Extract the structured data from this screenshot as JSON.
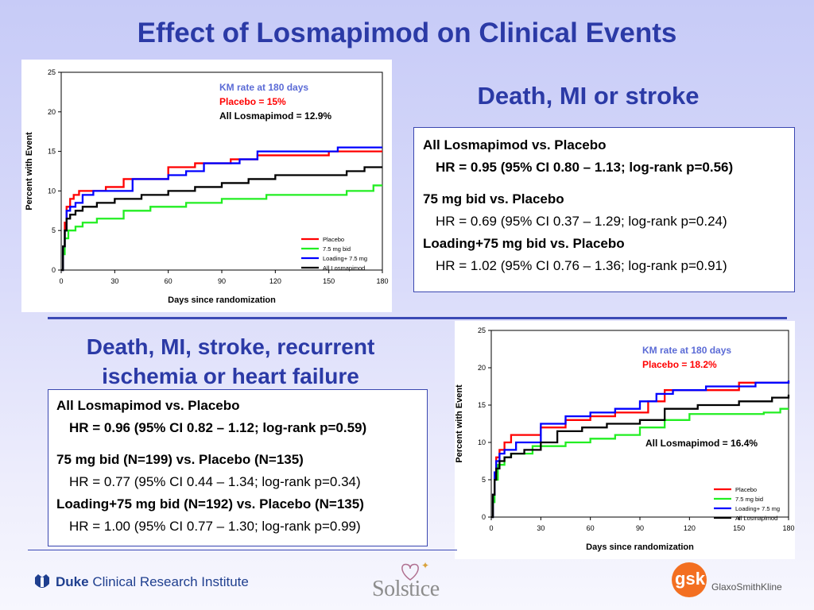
{
  "title": "Effect of Losmapimod on Clinical Events",
  "section1": {
    "heading": "Death, MI or stroke",
    "lines": [
      "All Losmapimod vs. Placebo",
      "HR = 0.95 (95% CI 0.80 – 1.13; log-rank p=0.56)",
      "75 mg bid vs. Placebo",
      "HR = 0.69 (95% CI 0.37 – 1.29; log-rank p=0.24)",
      "Loading+75 mg bid vs. Placebo",
      "HR = 1.02 (95% CI 0.76 – 1.36; log-rank p=0.91)"
    ]
  },
  "section2": {
    "heading_line1": "Death, MI, stroke, recurrent",
    "heading_line2": "ischemia or heart failure",
    "lines": [
      "All Losmapimod vs. Placebo",
      "HR = 0.96 (95% CI 0.82 – 1.12; log-rank p=0.59)",
      "75 mg bid (N=199) vs. Placebo (N=135)",
      "HR = 0.77 (95% CI 0.44 – 1.34; log-rank p=0.34)",
      "Loading+75 mg bid (N=192) vs. Placebo (N=135)",
      "HR = 1.00 (95% CI 0.77 – 1.30; log-rank p=0.99)"
    ]
  },
  "logos": {
    "duke_bold": "Duke",
    "duke_rest": "Clinical Research Institute",
    "solstice": "Solstice",
    "gsk": "gsk",
    "gsk_full": "GlaxoSmithKline"
  },
  "colors": {
    "title": "#2b3aa6",
    "placebo": "#ff0000",
    "bid75": "#22ee22",
    "loading": "#0000ff",
    "all": "#000000"
  },
  "chart_data": [
    {
      "type": "line",
      "step": true,
      "xlabel": "Days since randomization",
      "ylabel": "Percent with Event",
      "xlim": [
        0,
        180
      ],
      "ylim": [
        0,
        25
      ],
      "xticks": [
        0,
        30,
        60,
        90,
        120,
        150,
        180
      ],
      "yticks": [
        0,
        5,
        10,
        15,
        20,
        25
      ],
      "legend_position": "bottom-right",
      "annotations": [
        {
          "text": "KM rate at 180 days",
          "color": "#5b6bd6"
        },
        {
          "text": "Placebo = 15%",
          "color": "#ff0000"
        },
        {
          "text": "All Losmapimod = 12.9%",
          "color": "#000000"
        }
      ],
      "series": [
        {
          "name": "Placebo",
          "color": "#ff0000",
          "x": [
            0,
            1,
            2,
            3,
            5,
            7,
            10,
            15,
            25,
            35,
            55,
            60,
            75,
            95,
            110,
            150,
            180
          ],
          "y": [
            0,
            3,
            6,
            8,
            9,
            9.5,
            10,
            10,
            10.5,
            11.5,
            11.5,
            13,
            13.5,
            14,
            14.5,
            15,
            15
          ]
        },
        {
          "name": "7.5 mg bid",
          "color": "#22ee22",
          "x": [
            0,
            1,
            2,
            4,
            8,
            12,
            20,
            35,
            50,
            70,
            90,
            115,
            140,
            160,
            175,
            180
          ],
          "y": [
            0,
            2,
            4,
            5,
            5.5,
            6,
            6.5,
            7.5,
            8,
            8.5,
            9,
            9.5,
            9.5,
            10,
            10.7,
            10.7
          ]
        },
        {
          "name": "Loading+ 7.5 mg",
          "color": "#0000ff",
          "x": [
            0,
            1,
            2,
            3,
            5,
            8,
            12,
            18,
            30,
            40,
            60,
            70,
            80,
            100,
            110,
            155,
            180
          ],
          "y": [
            0,
            3,
            5,
            7.5,
            8,
            8.5,
            9.5,
            10,
            10,
            11.5,
            12,
            12.5,
            13.5,
            14,
            15,
            15.5,
            15.5
          ]
        },
        {
          "name": "All Losmapimod",
          "color": "#000000",
          "x": [
            0,
            1,
            2,
            3,
            5,
            8,
            12,
            20,
            30,
            45,
            60,
            75,
            90,
            105,
            120,
            160,
            170,
            180
          ],
          "y": [
            0,
            3,
            5,
            6.5,
            7,
            7.5,
            8,
            8.5,
            9,
            9.5,
            10,
            10.5,
            11,
            11.5,
            12,
            12.5,
            13,
            13
          ]
        }
      ]
    },
    {
      "type": "line",
      "step": true,
      "xlabel": "Days since randomization",
      "ylabel": "Percent with Event",
      "xlim": [
        0,
        180
      ],
      "ylim": [
        0,
        25
      ],
      "xticks": [
        0,
        30,
        60,
        90,
        120,
        150,
        180
      ],
      "yticks": [
        0,
        5,
        10,
        15,
        20,
        25
      ],
      "legend_position": "bottom-right",
      "annotations": [
        {
          "text": "KM rate at 180 days",
          "color": "#5b6bd6"
        },
        {
          "text": "Placebo = 18.2%",
          "color": "#ff0000"
        },
        {
          "text": "All Losmapimod = 16.4%",
          "color": "#000000"
        }
      ],
      "series": [
        {
          "name": "Placebo",
          "color": "#ff0000",
          "x": [
            0,
            1,
            2,
            3,
            5,
            8,
            12,
            20,
            30,
            45,
            60,
            75,
            95,
            105,
            120,
            150,
            180
          ],
          "y": [
            0,
            3,
            6,
            8,
            9,
            10,
            11,
            11,
            12,
            13,
            13.5,
            14,
            15.5,
            17,
            17,
            18,
            18.2
          ]
        },
        {
          "name": "7.5 mg bid",
          "color": "#22ee22",
          "x": [
            0,
            1,
            2,
            4,
            8,
            12,
            25,
            45,
            60,
            75,
            90,
            105,
            120,
            150,
            165,
            175,
            180
          ],
          "y": [
            0,
            2,
            5,
            7,
            8,
            8.5,
            9.5,
            10,
            10.5,
            11,
            12,
            13,
            13.8,
            13.8,
            14,
            14.5,
            14.5
          ]
        },
        {
          "name": "Loading+ 7.5 mg",
          "color": "#0000ff",
          "x": [
            0,
            1,
            2,
            3,
            5,
            8,
            15,
            30,
            45,
            60,
            75,
            90,
            100,
            110,
            130,
            160,
            180
          ],
          "y": [
            0,
            3,
            6,
            7.5,
            8.5,
            9,
            10,
            12.5,
            13.5,
            14,
            14.5,
            15.5,
            16.5,
            17,
            17.5,
            18,
            18.3
          ]
        },
        {
          "name": "All Losmapimod",
          "color": "#000000",
          "x": [
            0,
            1,
            2,
            3,
            5,
            8,
            12,
            20,
            30,
            40,
            55,
            70,
            90,
            105,
            125,
            150,
            170,
            180
          ],
          "y": [
            0,
            3,
            5,
            6.5,
            7.5,
            8,
            8.5,
            9,
            10,
            11.5,
            12,
            12.5,
            13,
            14.5,
            15,
            15.5,
            16,
            16.4
          ]
        }
      ]
    }
  ]
}
